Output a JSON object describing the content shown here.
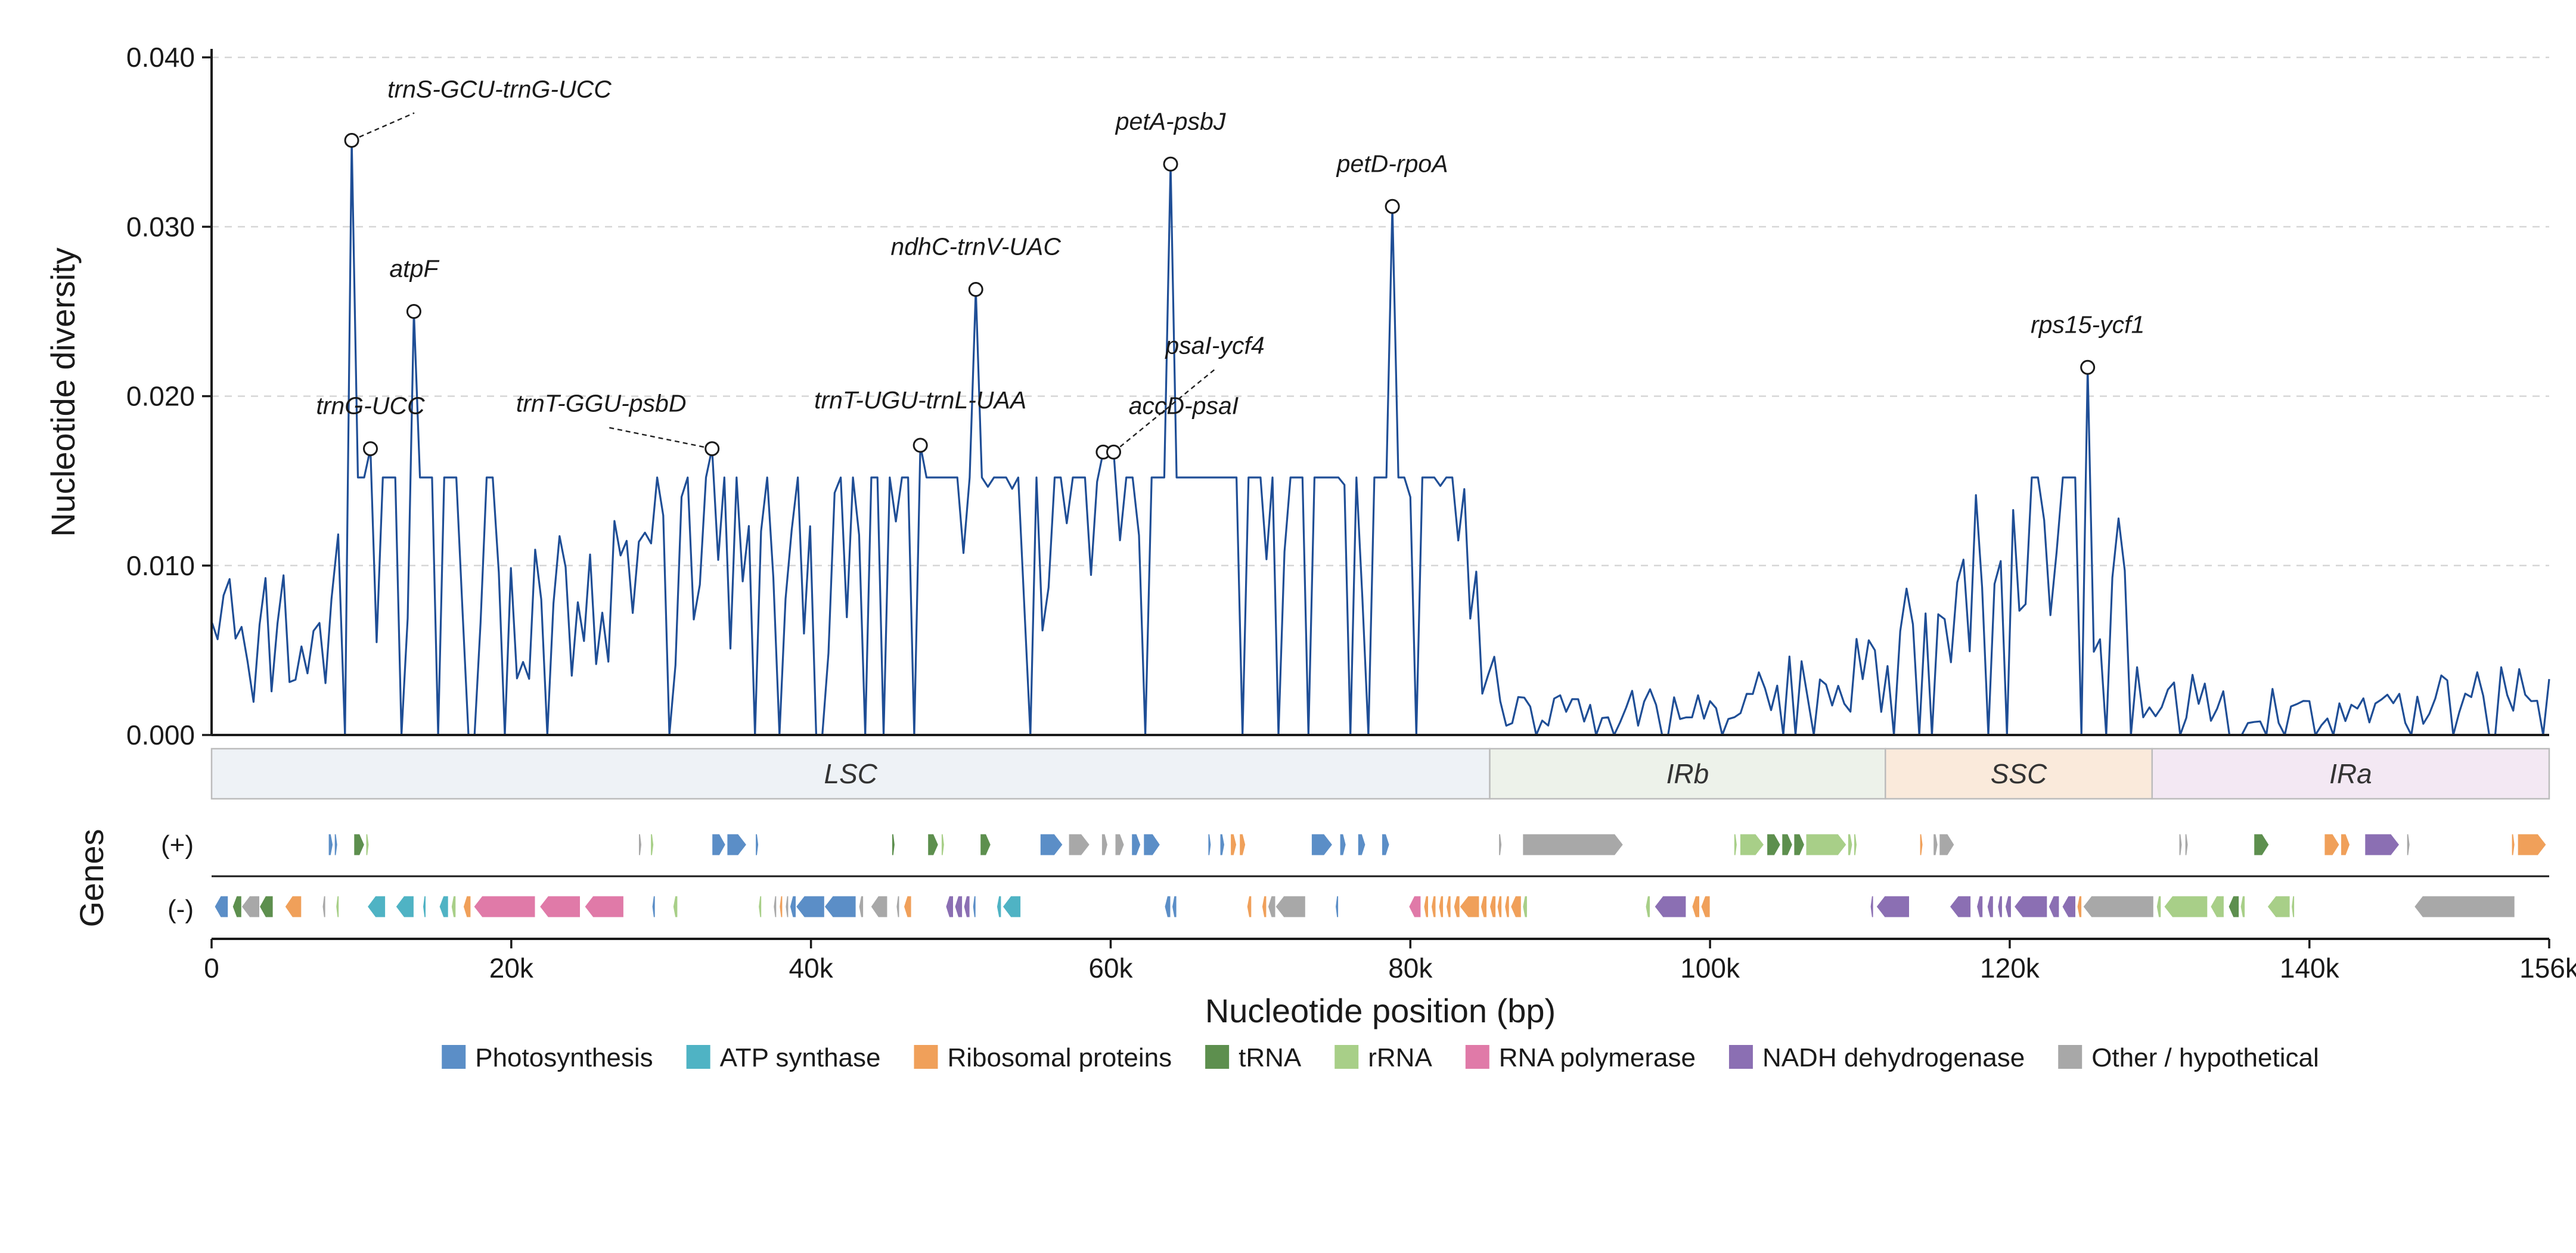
{
  "chart_data": {
    "type": "line",
    "xlabel": "Nucleotide position (bp)",
    "ylabel": "Nucleotide diversity",
    "gene_track_label": "Genes",
    "strands": [
      "(+)",
      "(-)"
    ],
    "xlim": [
      0,
      156000
    ],
    "ylim": [
      0,
      0.0405
    ],
    "x_ticks": [
      {
        "value": 0,
        "label": "0"
      },
      {
        "value": 20000,
        "label": "20k"
      },
      {
        "value": 40000,
        "label": "40k"
      },
      {
        "value": 60000,
        "label": "60k"
      },
      {
        "value": 80000,
        "label": "80k"
      },
      {
        "value": 100000,
        "label": "100k"
      },
      {
        "value": 120000,
        "label": "120k"
      },
      {
        "value": 140000,
        "label": "140k"
      },
      {
        "value": 156000,
        "label": "156k"
      }
    ],
    "y_ticks": [
      {
        "value": 0.0,
        "label": "0.000"
      },
      {
        "value": 0.01,
        "label": "0.010"
      },
      {
        "value": 0.02,
        "label": "0.020"
      },
      {
        "value": 0.03,
        "label": "0.030"
      },
      {
        "value": 0.04,
        "label": "0.040"
      }
    ],
    "grid": "horizontal dashed",
    "series_color": "#1f4e96",
    "series": [
      {
        "x": [
          0,
          8000,
          9350,
          10600,
          13500,
          22000,
          33400,
          47300,
          51000,
          59500,
          60200,
          64000,
          78800,
          86000,
          100000,
          111000,
          116500,
          125200,
          128500,
          140000,
          156000
        ],
        "y": [
          0.0067,
          0.008,
          0.0351,
          0.0169,
          0.025,
          0.008,
          0.0169,
          0.0171,
          0.0263,
          0.0167,
          0.0167,
          0.0337,
          0.0312,
          0.002,
          0.002,
          0.005,
          0.009,
          0.0217,
          0.004,
          0.002,
          0.0033
        ]
      }
    ],
    "annotations": [
      {
        "label": "trnS-GCU-trnG-UCC",
        "x": 9350,
        "y": 0.0351
      },
      {
        "label": "trnG-UCC",
        "x": 10600,
        "y": 0.0169
      },
      {
        "label": "atpF",
        "x": 13500,
        "y": 0.025
      },
      {
        "label": "trnT-GGU-psbD",
        "x": 33400,
        "y": 0.0169
      },
      {
        "label": "trnT-UGU-trnL-UAA",
        "x": 47300,
        "y": 0.0171
      },
      {
        "label": "ndhC-trnV-UAC",
        "x": 51000,
        "y": 0.0263
      },
      {
        "label": "accD-psaI",
        "x": 59500,
        "y": 0.0167
      },
      {
        "label": "psaI-ycf4",
        "x": 60200,
        "y": 0.0167
      },
      {
        "label": "petA-psbJ",
        "x": 64000,
        "y": 0.0337
      },
      {
        "label": "petD-rpoA",
        "x": 78800,
        "y": 0.0312
      },
      {
        "label": "rps15-ycf1",
        "x": 125200,
        "y": 0.0217
      }
    ],
    "regions": [
      {
        "label": "LSC",
        "start": 0,
        "end": 85300,
        "color": "#eef2f6"
      },
      {
        "label": "IRb",
        "start": 85300,
        "end": 111700,
        "color": "#edf2ea"
      },
      {
        "label": "SSC",
        "start": 111700,
        "end": 129500,
        "color": "#faeadb"
      },
      {
        "label": "IRa",
        "start": 129500,
        "end": 156000,
        "color": "#f3e8f3"
      }
    ],
    "gene_categories": [
      {
        "name": "Photosynthesis",
        "color": "#5b8ec7"
      },
      {
        "name": "ATP synthase",
        "color": "#4fb3c4"
      },
      {
        "name": "Ribosomal proteins",
        "color": "#f0a05a"
      },
      {
        "name": "tRNA",
        "color": "#5d8f4e"
      },
      {
        "name": "rRNA",
        "color": "#a8cf88"
      },
      {
        "name": "RNA polymerase",
        "color": "#e07aa8"
      },
      {
        "name": "NADH dehydrogenase",
        "color": "#8b6fb3"
      },
      {
        "name": "Other / hypothetical",
        "color": "#a8a8a8"
      }
    ],
    "genes": {
      "plus": [
        {
          "start": 7800,
          "end": 8100,
          "cat": 0
        },
        {
          "start": 8200,
          "end": 8400,
          "cat": 0
        },
        {
          "start": 9500,
          "end": 10200,
          "cat": 3
        },
        {
          "start": 10300,
          "end": 10500,
          "cat": 4
        },
        {
          "start": 28500,
          "end": 28700,
          "cat": 7
        },
        {
          "start": 29300,
          "end": 29500,
          "cat": 4
        },
        {
          "start": 33400,
          "end": 34300,
          "cat": 0
        },
        {
          "start": 34400,
          "end": 35700,
          "cat": 0
        },
        {
          "start": 36300,
          "end": 36500,
          "cat": 0
        },
        {
          "start": 45400,
          "end": 45600,
          "cat": 3
        },
        {
          "start": 47800,
          "end": 48500,
          "cat": 3
        },
        {
          "start": 48700,
          "end": 48900,
          "cat": 4
        },
        {
          "start": 51300,
          "end": 52000,
          "cat": 3
        },
        {
          "start": 55300,
          "end": 56800,
          "cat": 0
        },
        {
          "start": 57200,
          "end": 58600,
          "cat": 7
        },
        {
          "start": 59400,
          "end": 59800,
          "cat": 7
        },
        {
          "start": 60300,
          "end": 60900,
          "cat": 7
        },
        {
          "start": 61400,
          "end": 62000,
          "cat": 0
        },
        {
          "start": 62200,
          "end": 63300,
          "cat": 0
        },
        {
          "start": 66500,
          "end": 66700,
          "cat": 0
        },
        {
          "start": 67300,
          "end": 67600,
          "cat": 0
        },
        {
          "start": 68000,
          "end": 68400,
          "cat": 2
        },
        {
          "start": 68600,
          "end": 69000,
          "cat": 2
        },
        {
          "start": 73400,
          "end": 74800,
          "cat": 0
        },
        {
          "start": 75300,
          "end": 75700,
          "cat": 0
        },
        {
          "start": 76500,
          "end": 77000,
          "cat": 0
        },
        {
          "start": 78100,
          "end": 78600,
          "cat": 0
        },
        {
          "start": 85900,
          "end": 86100,
          "cat": 7
        },
        {
          "start": 87500,
          "end": 94200,
          "cat": 7
        },
        {
          "start": 101600,
          "end": 101800,
          "cat": 4
        },
        {
          "start": 102000,
          "end": 103600,
          "cat": 4
        },
        {
          "start": 103800,
          "end": 104700,
          "cat": 3
        },
        {
          "start": 104800,
          "end": 105500,
          "cat": 3
        },
        {
          "start": 105600,
          "end": 106300,
          "cat": 3
        },
        {
          "start": 106400,
          "end": 109100,
          "cat": 4
        },
        {
          "start": 109200,
          "end": 109500,
          "cat": 4
        },
        {
          "start": 109600,
          "end": 109800,
          "cat": 4
        },
        {
          "start": 114000,
          "end": 114200,
          "cat": 2
        },
        {
          "start": 114900,
          "end": 115200,
          "cat": 7
        },
        {
          "start": 115300,
          "end": 116300,
          "cat": 7
        },
        {
          "start": 131300,
          "end": 131500,
          "cat": 7
        },
        {
          "start": 131700,
          "end": 131900,
          "cat": 7
        },
        {
          "start": 136300,
          "end": 137300,
          "cat": 3
        },
        {
          "start": 141000,
          "end": 142000,
          "cat": 2
        },
        {
          "start": 142100,
          "end": 142700,
          "cat": 2
        },
        {
          "start": 143700,
          "end": 146000,
          "cat": 6
        },
        {
          "start": 146500,
          "end": 146700,
          "cat": 7
        },
        {
          "start": 153500,
          "end": 153700,
          "cat": 2
        },
        {
          "start": 153900,
          "end": 155800,
          "cat": 2
        }
      ],
      "minus": [
        {
          "start": 200,
          "end": 1100,
          "cat": 0
        },
        {
          "start": 1400,
          "end": 2000,
          "cat": 3
        },
        {
          "start": 2000,
          "end": 3200,
          "cat": 7
        },
        {
          "start": 3200,
          "end": 4100,
          "cat": 3
        },
        {
          "start": 4900,
          "end": 6000,
          "cat": 2
        },
        {
          "start": 7400,
          "end": 7600,
          "cat": 7
        },
        {
          "start": 8300,
          "end": 8500,
          "cat": 4
        },
        {
          "start": 10400,
          "end": 11600,
          "cat": 1
        },
        {
          "start": 12300,
          "end": 13500,
          "cat": 1
        },
        {
          "start": 14100,
          "end": 14300,
          "cat": 1
        },
        {
          "start": 15200,
          "end": 15800,
          "cat": 1
        },
        {
          "start": 16000,
          "end": 16300,
          "cat": 4
        },
        {
          "start": 16800,
          "end": 17300,
          "cat": 2
        },
        {
          "start": 17500,
          "end": 21600,
          "cat": 5
        },
        {
          "start": 21900,
          "end": 24600,
          "cat": 5
        },
        {
          "start": 24900,
          "end": 27500,
          "cat": 5
        },
        {
          "start": 29400,
          "end": 29600,
          "cat": 0
        },
        {
          "start": 30800,
          "end": 31100,
          "cat": 4
        },
        {
          "start": 36500,
          "end": 36700,
          "cat": 4
        },
        {
          "start": 37500,
          "end": 37700,
          "cat": 7
        },
        {
          "start": 37900,
          "end": 38100,
          "cat": 2
        },
        {
          "start": 38300,
          "end": 38500,
          "cat": 7
        },
        {
          "start": 38600,
          "end": 39000,
          "cat": 0
        },
        {
          "start": 39000,
          "end": 40900,
          "cat": 0
        },
        {
          "start": 40900,
          "end": 43000,
          "cat": 0
        },
        {
          "start": 43200,
          "end": 43500,
          "cat": 7
        },
        {
          "start": 44000,
          "end": 45100,
          "cat": 7
        },
        {
          "start": 45700,
          "end": 45900,
          "cat": 7
        },
        {
          "start": 46200,
          "end": 46700,
          "cat": 2
        },
        {
          "start": 49000,
          "end": 49500,
          "cat": 6
        },
        {
          "start": 49600,
          "end": 50100,
          "cat": 6
        },
        {
          "start": 50200,
          "end": 50600,
          "cat": 6
        },
        {
          "start": 50800,
          "end": 51000,
          "cat": 0
        },
        {
          "start": 52400,
          "end": 52700,
          "cat": 1
        },
        {
          "start": 52800,
          "end": 54000,
          "cat": 1
        },
        {
          "start": 63600,
          "end": 64000,
          "cat": 0
        },
        {
          "start": 64100,
          "end": 64400,
          "cat": 0
        },
        {
          "start": 69100,
          "end": 69400,
          "cat": 2
        },
        {
          "start": 70100,
          "end": 70400,
          "cat": 2
        },
        {
          "start": 70500,
          "end": 71000,
          "cat": 7
        },
        {
          "start": 71000,
          "end": 73000,
          "cat": 7
        },
        {
          "start": 75000,
          "end": 75200,
          "cat": 0
        },
        {
          "start": 79900,
          "end": 80700,
          "cat": 5
        },
        {
          "start": 80900,
          "end": 81200,
          "cat": 2
        },
        {
          "start": 81400,
          "end": 81700,
          "cat": 2
        },
        {
          "start": 81900,
          "end": 82200,
          "cat": 2
        },
        {
          "start": 82400,
          "end": 82700,
          "cat": 2
        },
        {
          "start": 82900,
          "end": 83300,
          "cat": 2
        },
        {
          "start": 83300,
          "end": 84600,
          "cat": 2
        },
        {
          "start": 84700,
          "end": 85100,
          "cat": 2
        },
        {
          "start": 85300,
          "end": 85700,
          "cat": 2
        },
        {
          "start": 85800,
          "end": 86100,
          "cat": 2
        },
        {
          "start": 86300,
          "end": 86600,
          "cat": 2
        },
        {
          "start": 86700,
          "end": 87400,
          "cat": 2
        },
        {
          "start": 87500,
          "end": 87800,
          "cat": 4
        },
        {
          "start": 95700,
          "end": 96000,
          "cat": 4
        },
        {
          "start": 96300,
          "end": 98400,
          "cat": 6
        },
        {
          "start": 98800,
          "end": 99300,
          "cat": 2
        },
        {
          "start": 99400,
          "end": 100000,
          "cat": 2
        },
        {
          "start": 110700,
          "end": 110900,
          "cat": 6
        },
        {
          "start": 111100,
          "end": 113300,
          "cat": 6
        },
        {
          "start": 116000,
          "end": 117400,
          "cat": 6
        },
        {
          "start": 117800,
          "end": 118200,
          "cat": 6
        },
        {
          "start": 118500,
          "end": 118900,
          "cat": 6
        },
        {
          "start": 119200,
          "end": 119500,
          "cat": 6
        },
        {
          "start": 119700,
          "end": 120100,
          "cat": 6
        },
        {
          "start": 120300,
          "end": 122500,
          "cat": 6
        },
        {
          "start": 122600,
          "end": 123300,
          "cat": 6
        },
        {
          "start": 123500,
          "end": 124400,
          "cat": 6
        },
        {
          "start": 124500,
          "end": 124800,
          "cat": 2
        },
        {
          "start": 124900,
          "end": 129600,
          "cat": 7
        },
        {
          "start": 129800,
          "end": 130100,
          "cat": 4
        },
        {
          "start": 130300,
          "end": 133200,
          "cat": 4
        },
        {
          "start": 133400,
          "end": 134300,
          "cat": 4
        },
        {
          "start": 134600,
          "end": 135300,
          "cat": 3
        },
        {
          "start": 135400,
          "end": 135700,
          "cat": 4
        },
        {
          "start": 137200,
          "end": 138700,
          "cat": 4
        },
        {
          "start": 138800,
          "end": 139000,
          "cat": 4
        },
        {
          "start": 147000,
          "end": 153700,
          "cat": 7
        }
      ]
    }
  }
}
